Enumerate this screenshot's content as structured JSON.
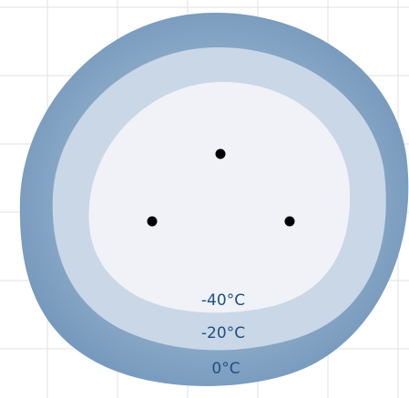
{
  "diagram": {
    "zones": [
      {
        "label": "-40°C",
        "fill": "#f0f2f7"
      },
      {
        "label": "-20°C",
        "fill": "#c9d7e7"
      },
      {
        "label": "0°C",
        "fill": "#7fa1c2"
      }
    ],
    "heat_sources": 3,
    "colors": {
      "background": "#ffffff",
      "grid": "#e2e2e2",
      "label_text": "#1e4f86",
      "point": "#000000"
    }
  }
}
